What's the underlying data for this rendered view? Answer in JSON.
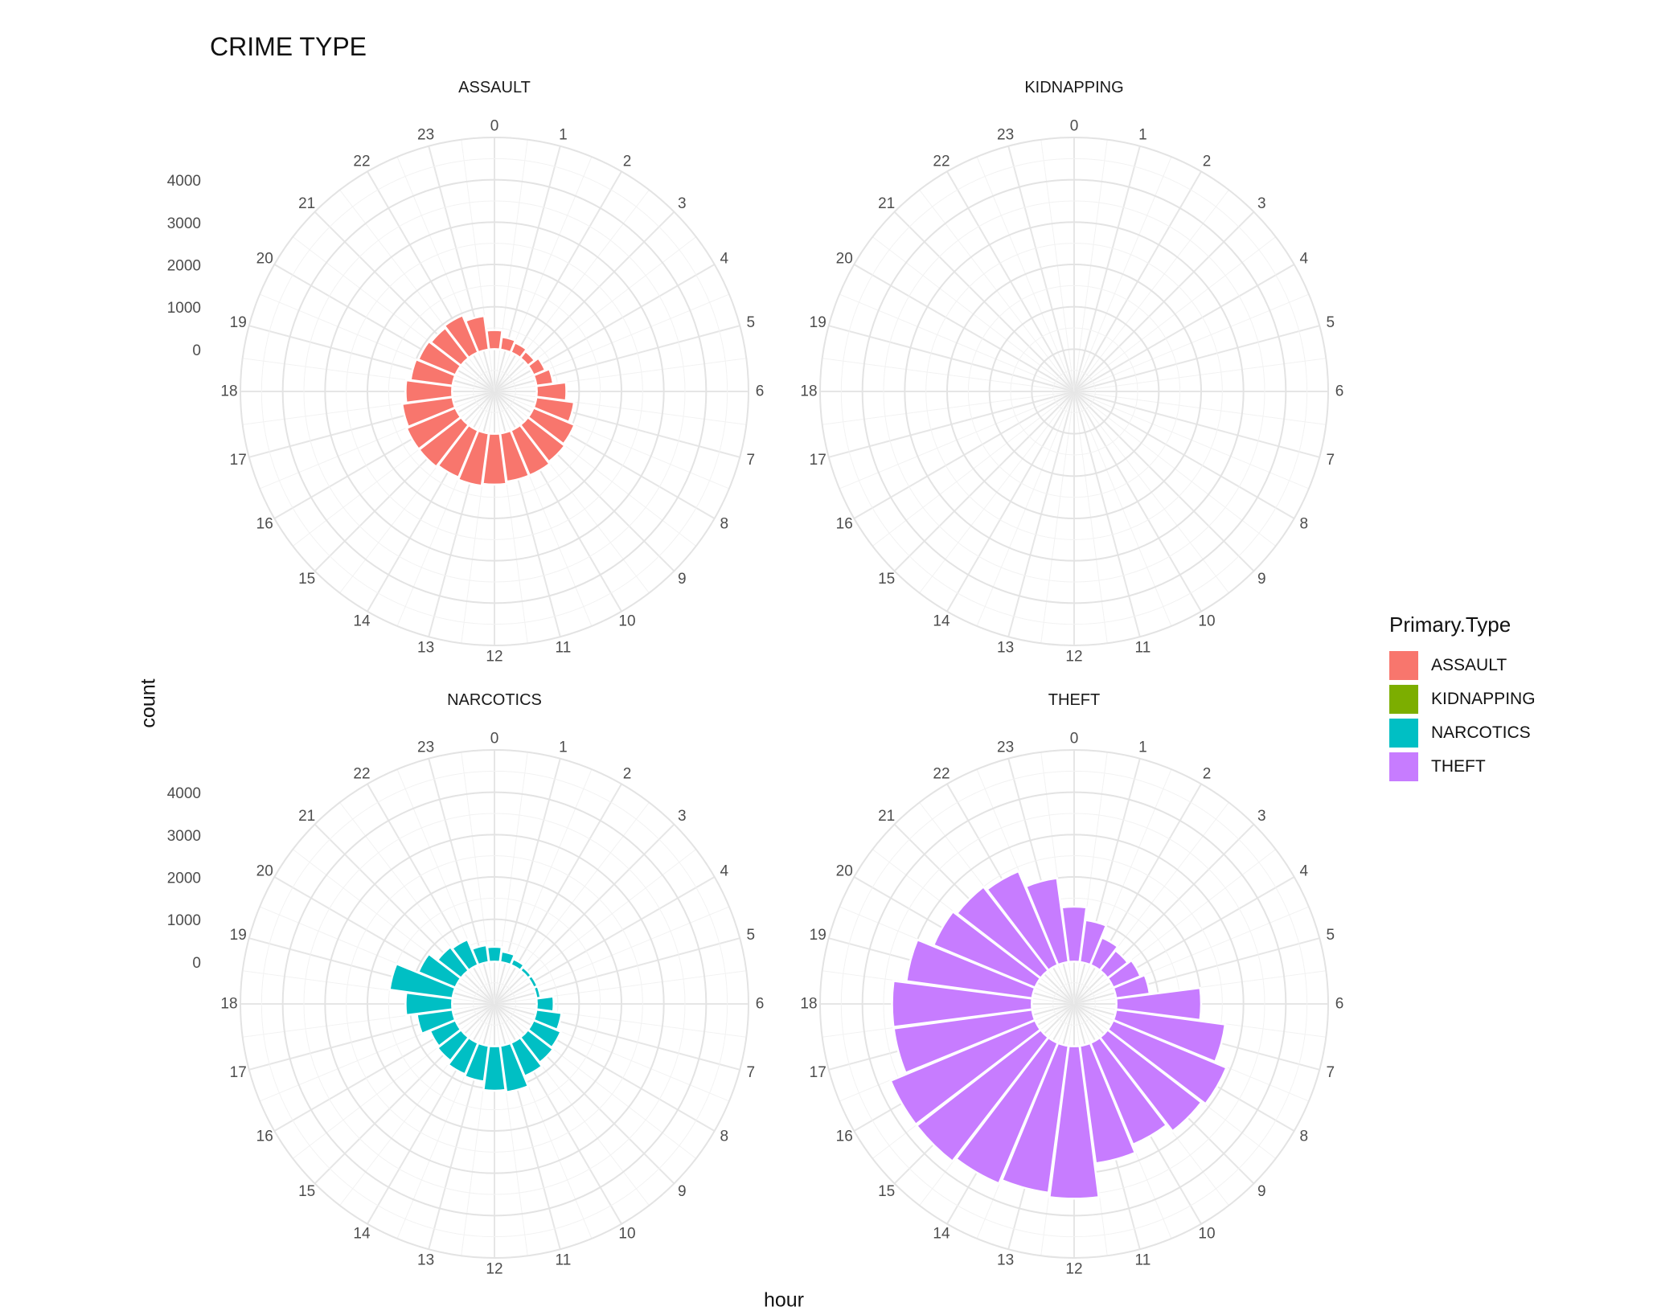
{
  "chart_data": {
    "type": "polar-bar",
    "title": "CRIME TYPE",
    "xlabel": "hour",
    "ylabel": "count",
    "ylim": [
      -1000,
      5000
    ],
    "radial_ticks": [
      0,
      1000,
      2000,
      3000,
      4000
    ],
    "hours": [
      "0",
      "1",
      "2",
      "3",
      "4",
      "5",
      "6",
      "7",
      "8",
      "9",
      "10",
      "11",
      "12",
      "13",
      "14",
      "15",
      "16",
      "17",
      "18",
      "19",
      "20",
      "21",
      "22",
      "23"
    ],
    "grid": true,
    "legend_position": "right",
    "legend_title": "Primary.Type",
    "series": [
      {
        "name": "ASSAULT",
        "color": "#F8766D",
        "values": [
          450,
          300,
          250,
          200,
          300,
          400,
          700,
          900,
          1050,
          1100,
          1150,
          1150,
          1200,
          1250,
          1200,
          1250,
          1250,
          1200,
          1100,
          1000,
          950,
          900,
          950,
          800
        ]
      },
      {
        "name": "KIDNAPPING",
        "color": "#7CAE00",
        "values": [
          0,
          0,
          0,
          0,
          0,
          0,
          0,
          0,
          0,
          0,
          0,
          0,
          0,
          0,
          0,
          0,
          0,
          0,
          0,
          0,
          0,
          0,
          0,
          0
        ]
      },
      {
        "name": "NARCOTICS",
        "color": "#00BFC4",
        "values": [
          350,
          250,
          150,
          100,
          100,
          100,
          400,
          600,
          700,
          750,
          850,
          1100,
          1050,
          850,
          800,
          700,
          650,
          850,
          1100,
          1500,
          950,
          700,
          650,
          400
        ]
      },
      {
        "name": "THEFT",
        "color": "#C77CFF",
        "values": [
          1300,
          1000,
          700,
          600,
          700,
          800,
          2000,
          2600,
          2900,
          2800,
          2600,
          2800,
          3600,
          3500,
          3600,
          3700,
          3700,
          3300,
          3300,
          3000,
          2600,
          2500,
          2400,
          2000
        ]
      }
    ]
  }
}
